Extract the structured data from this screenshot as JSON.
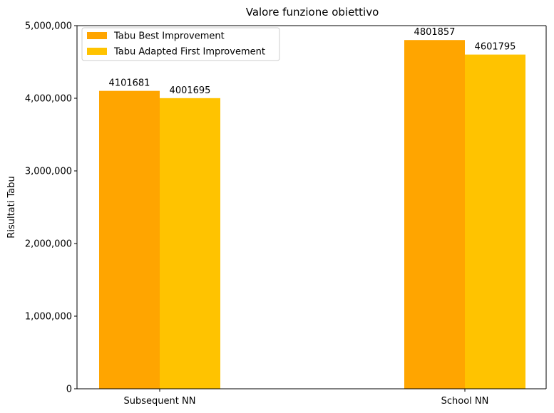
{
  "chart_data": {
    "type": "bar",
    "title": "Valore funzione obiettivo",
    "xlabel": "",
    "ylabel": "Risultati Tabu",
    "categories": [
      "Subsequent NN",
      "School NN"
    ],
    "series": [
      {
        "name": "Tabu Best Improvement",
        "values": [
          4101681,
          4801857
        ],
        "color": "#FFA500"
      },
      {
        "name": "Tabu Adapted First Improvement",
        "values": [
          4001695,
          4601795
        ],
        "color": "#FFC300"
      }
    ],
    "ylim": [
      0,
      5000000
    ],
    "yticks": [
      0,
      1000000,
      2000000,
      3000000,
      4000000,
      5000000
    ],
    "ytick_labels": [
      "0",
      "1,000,000",
      "2,000,000",
      "3,000,000",
      "4,000,000",
      "5,000,000"
    ],
    "data_labels": [
      [
        "4101681",
        "4801857"
      ],
      [
        "4001695",
        "4601795"
      ]
    ],
    "legend": "upper-left",
    "grid": false
  }
}
